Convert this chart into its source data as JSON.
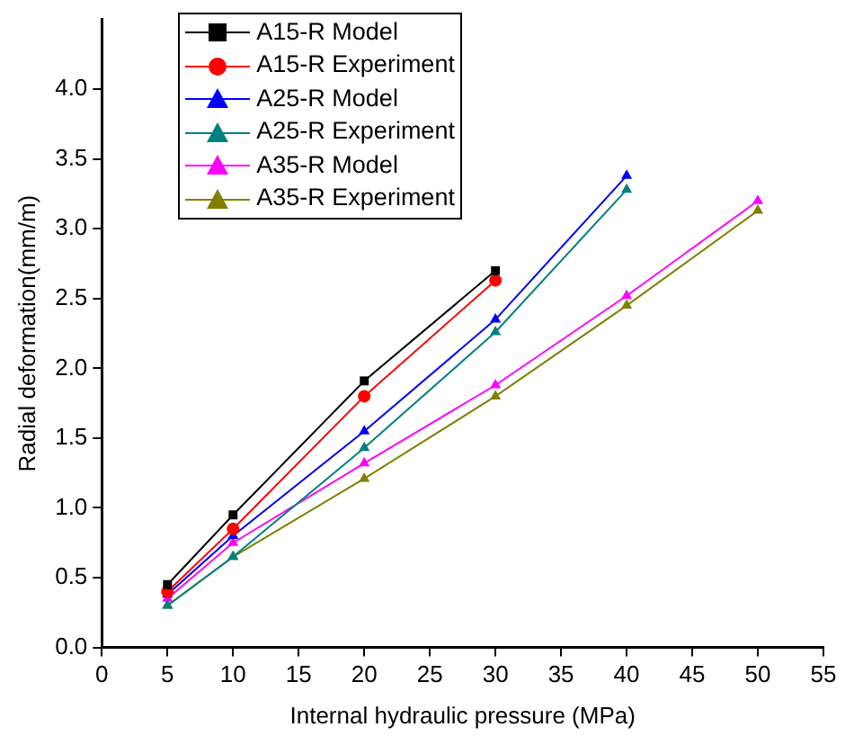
{
  "chart_data": {
    "type": "line",
    "xlabel": "Internal hydraulic pressure (MPa)",
    "ylabel": "Radial deformation(mm/m)",
    "x": [
      5,
      10,
      20,
      30,
      40,
      50
    ],
    "series": [
      {
        "name": "A15-R Model",
        "color": "#000000",
        "marker": "square",
        "values": [
          0.45,
          0.95,
          1.91,
          2.7,
          null,
          null
        ]
      },
      {
        "name": "A15-R Experiment",
        "color": "#ff0000",
        "marker": "circle",
        "values": [
          0.4,
          0.85,
          1.8,
          2.63,
          null,
          null
        ]
      },
      {
        "name": "A25-R Model",
        "color": "#0000ff",
        "marker": "triangle",
        "values": [
          0.38,
          0.8,
          1.55,
          2.35,
          3.38,
          null
        ]
      },
      {
        "name": "A25-R Experiment",
        "color": "#008080",
        "marker": "triangle",
        "values": [
          0.3,
          0.65,
          1.43,
          2.26,
          3.28,
          null
        ]
      },
      {
        "name": "A35-R Model",
        "color": "#ff00ff",
        "marker": "triangle",
        "values": [
          0.35,
          0.75,
          1.32,
          1.88,
          2.52,
          3.2
        ]
      },
      {
        "name": "A35-R Experiment",
        "color": "#808000",
        "marker": "triangle",
        "values": [
          0.3,
          0.65,
          1.21,
          1.8,
          2.45,
          3.13
        ]
      }
    ],
    "xlim": [
      0,
      55
    ],
    "xticks": [
      0,
      5,
      10,
      15,
      20,
      25,
      30,
      35,
      40,
      45,
      50,
      55
    ],
    "ylim": [
      0,
      4.5
    ],
    "yticks": [
      {
        "value": 0,
        "label": "0.0"
      },
      0.5,
      {
        "value": 1,
        "label": "1.0"
      },
      1.5,
      {
        "value": 2,
        "label": "2.0"
      },
      2.5,
      {
        "value": 3,
        "label": "3.0"
      },
      3.5,
      {
        "value": 4,
        "label": "4.0"
      }
    ],
    "grid": false,
    "legend": "top left",
    "line_style": "solid"
  }
}
